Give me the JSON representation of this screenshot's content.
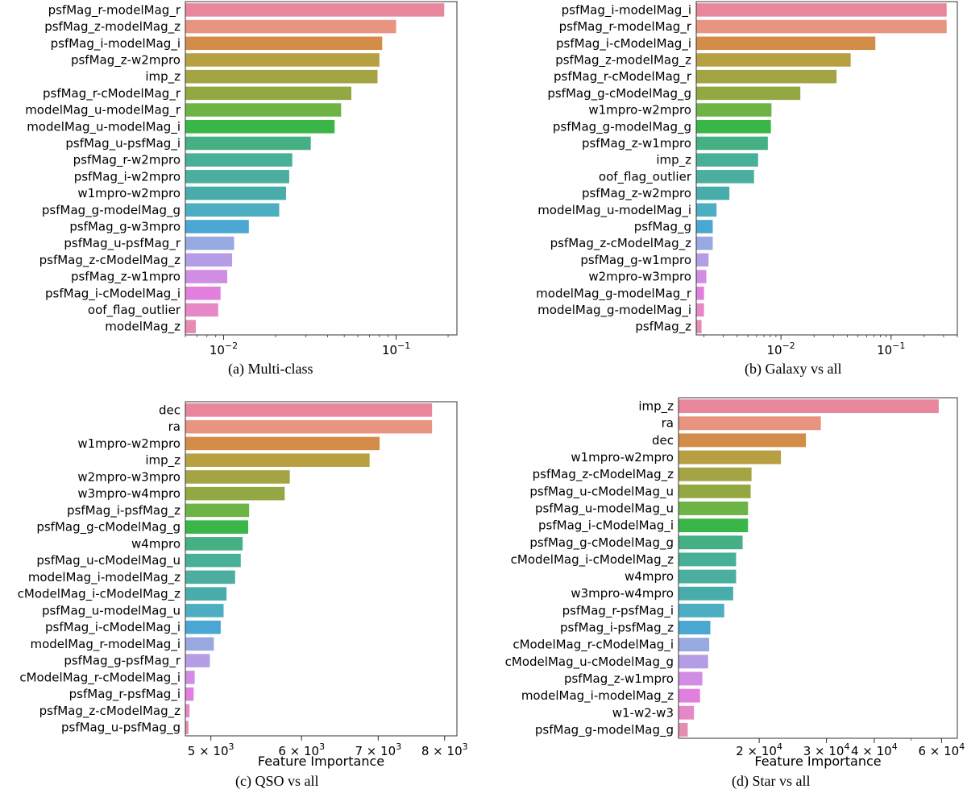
{
  "chart_data": [
    {
      "type": "bar",
      "orientation": "horizontal",
      "caption": "(a) Multi-class",
      "xlabel": "",
      "xscale": "log",
      "xlim": [
        0.006,
        0.225
      ],
      "xticks": [
        {
          "value": 0.01,
          "base": "10",
          "exp": "−2",
          "suffix": ""
        },
        {
          "value": 0.1,
          "base": "10",
          "exp": "−1",
          "suffix": ""
        }
      ],
      "categories": [
        "psfMag_r-modelMag_r",
        "psfMag_z-modelMag_z",
        "psfMag_i-modelMag_i",
        "psfMag_z-w2mpro",
        "imp_z",
        "psfMag_r-cModelMag_r",
        "modelMag_u-modelMag_r",
        "modelMag_u-modelMag_i",
        "psfMag_u-psfMag_i",
        "psfMag_r-w2mpro",
        "psfMag_i-w2mpro",
        "w1mpro-w2mpro",
        "psfMag_g-modelMag_g",
        "psfMag_g-w3mpro",
        "psfMag_u-psfMag_r",
        "psfMag_z-cModelMag_z",
        "psfMag_z-w1mpro",
        "psfMag_i-cModelMag_i",
        "oof_flag_outlier",
        "modelMag_z"
      ],
      "values": [
        0.19,
        0.1,
        0.083,
        0.08,
        0.078,
        0.055,
        0.048,
        0.044,
        0.032,
        0.025,
        0.024,
        0.023,
        0.021,
        0.014,
        0.0115,
        0.0112,
        0.0105,
        0.0096,
        0.0093,
        0.0069
      ]
    },
    {
      "type": "bar",
      "orientation": "horizontal",
      "caption": "(b) Galaxy vs all",
      "xlabel": "",
      "xscale": "log",
      "xlim": [
        0.0017,
        0.4
      ],
      "xticks": [
        {
          "value": 0.01,
          "base": "10",
          "exp": "−2",
          "suffix": ""
        },
        {
          "value": 0.1,
          "base": "10",
          "exp": "−1",
          "suffix": ""
        }
      ],
      "categories": [
        "psfMag_i-modelMag_i",
        "psfMag_r-modelMag_r",
        "psfMag_i-cModelMag_i",
        "psfMag_z-modelMag_z",
        "psfMag_r-cModelMag_r",
        "psfMag_g-cModelMag_g",
        "w1mpro-w2mpro",
        "psfMag_g-modelMag_g",
        "psfMag_z-w1mpro",
        "imp_z",
        "oof_flag_outlier",
        "psfMag_z-w2mpro",
        "modelMag_u-modelMag_i",
        "psfMag_g",
        "psfMag_z-cModelMag_z",
        "psfMag_g-w1mpro",
        "w2mpro-w3mpro",
        "modelMag_g-modelMag_r",
        "modelMag_g-modelMag_i",
        "psfMag_z"
      ],
      "values": [
        0.32,
        0.32,
        0.072,
        0.043,
        0.032,
        0.015,
        0.0082,
        0.0081,
        0.0076,
        0.0062,
        0.0057,
        0.0034,
        0.0026,
        0.0024,
        0.0024,
        0.0022,
        0.0021,
        0.002,
        0.002,
        0.0019
      ]
    },
    {
      "type": "bar",
      "orientation": "horizontal",
      "caption": "(c) QSO vs all",
      "xlabel": "Feature Importance",
      "xscale": "log",
      "xlim": [
        4750,
        8200
      ],
      "xticks": [
        {
          "value": 5000,
          "base": "5 × 10",
          "exp": "3",
          "suffix": ""
        },
        {
          "value": 6000,
          "base": "6 × 10",
          "exp": "3",
          "suffix": ""
        },
        {
          "value": 7000,
          "base": "7 × 10",
          "exp": "3",
          "suffix": ""
        },
        {
          "value": 8000,
          "base": "8 × 10",
          "exp": "3",
          "suffix": ""
        }
      ],
      "categories": [
        "dec",
        "ra",
        "w1mpro-w2mpro",
        "imp_z",
        "w2mpro-w3mpro",
        "w3mpro-w4mpro",
        "psfMag_i-psfMag_z",
        "psfMag_g-cModelMag_g",
        "w4mpro",
        "psfMag_u-cModelMag_u",
        "modelMag_i-modelMag_z",
        "cModelMag_i-cModelMag_z",
        "psfMag_u-modelMag_u",
        "psfMag_i-cModelMag_i",
        "modelMag_r-modelMag_i",
        "psfMag_g-psfMag_r",
        "cModelMag_r-cModelMag_i",
        "psfMag_r-psfMag_i",
        "psfMag_z-cModelMag_z",
        "psfMag_u-psfMag_g"
      ],
      "values": [
        7800,
        7800,
        7020,
        6880,
        5860,
        5800,
        5400,
        5390,
        5330,
        5310,
        5250,
        5160,
        5130,
        5100,
        5030,
        4990,
        4840,
        4830,
        4790,
        4780
      ]
    },
    {
      "type": "bar",
      "orientation": "horizontal",
      "caption": "(d) Star vs all",
      "xlabel": "Feature Importance",
      "xscale": "log",
      "xlim": [
        12300,
        66000
      ],
      "xticks": [
        {
          "value": 20000,
          "base": "2 × 10",
          "exp": "4",
          "suffix": ""
        },
        {
          "value": 30000,
          "base": "3 × 10",
          "exp": "4",
          "suffix": ""
        },
        {
          "value": 40000,
          "base": "4 × 10",
          "exp": "4",
          "suffix": ""
        },
        {
          "value": 60000,
          "base": "6 × 10",
          "exp": "4",
          "suffix": ""
        }
      ],
      "categories": [
        "imp_z",
        "ra",
        "dec",
        "w1mpro-w2mpro",
        "psfMag_z-cModelMag_z",
        "psfMag_u-cModelMag_u",
        "psfMag_u-modelMag_u",
        "psfMag_i-cModelMag_i",
        "psfMag_g-cModelMag_g",
        "cModelMag_i-cModelMag_z",
        "w4mpro",
        "w3mpro-w4mpro",
        "psfMag_r-psfMag_i",
        "psfMag_i-psfMag_z",
        "cModelMag_r-cModelMag_i",
        "cModelMag_u-cModelMag_g",
        "psfMag_z-w1mpro",
        "modelMag_i-modelMag_z",
        "w1-w2-w3",
        "psfMag_g-modelMag_g"
      ],
      "values": [
        59000,
        29000,
        26500,
        22800,
        19100,
        19000,
        18700,
        18700,
        18100,
        17400,
        17400,
        17100,
        16200,
        14900,
        14800,
        14700,
        14200,
        14000,
        13500,
        13000
      ]
    }
  ],
  "colors": [
    "#e8879b",
    "#e99480",
    "#d48d48",
    "#b7a041",
    "#a4a444",
    "#93a843",
    "#6eb346",
    "#3ab649",
    "#45b083",
    "#48b097",
    "#4bae9f",
    "#48acaa",
    "#4caec0",
    "#4aa6d2",
    "#98a8e0",
    "#b59de5",
    "#d18ce4",
    "#e07fdd",
    "#e688c6",
    "#e68bb3"
  ]
}
